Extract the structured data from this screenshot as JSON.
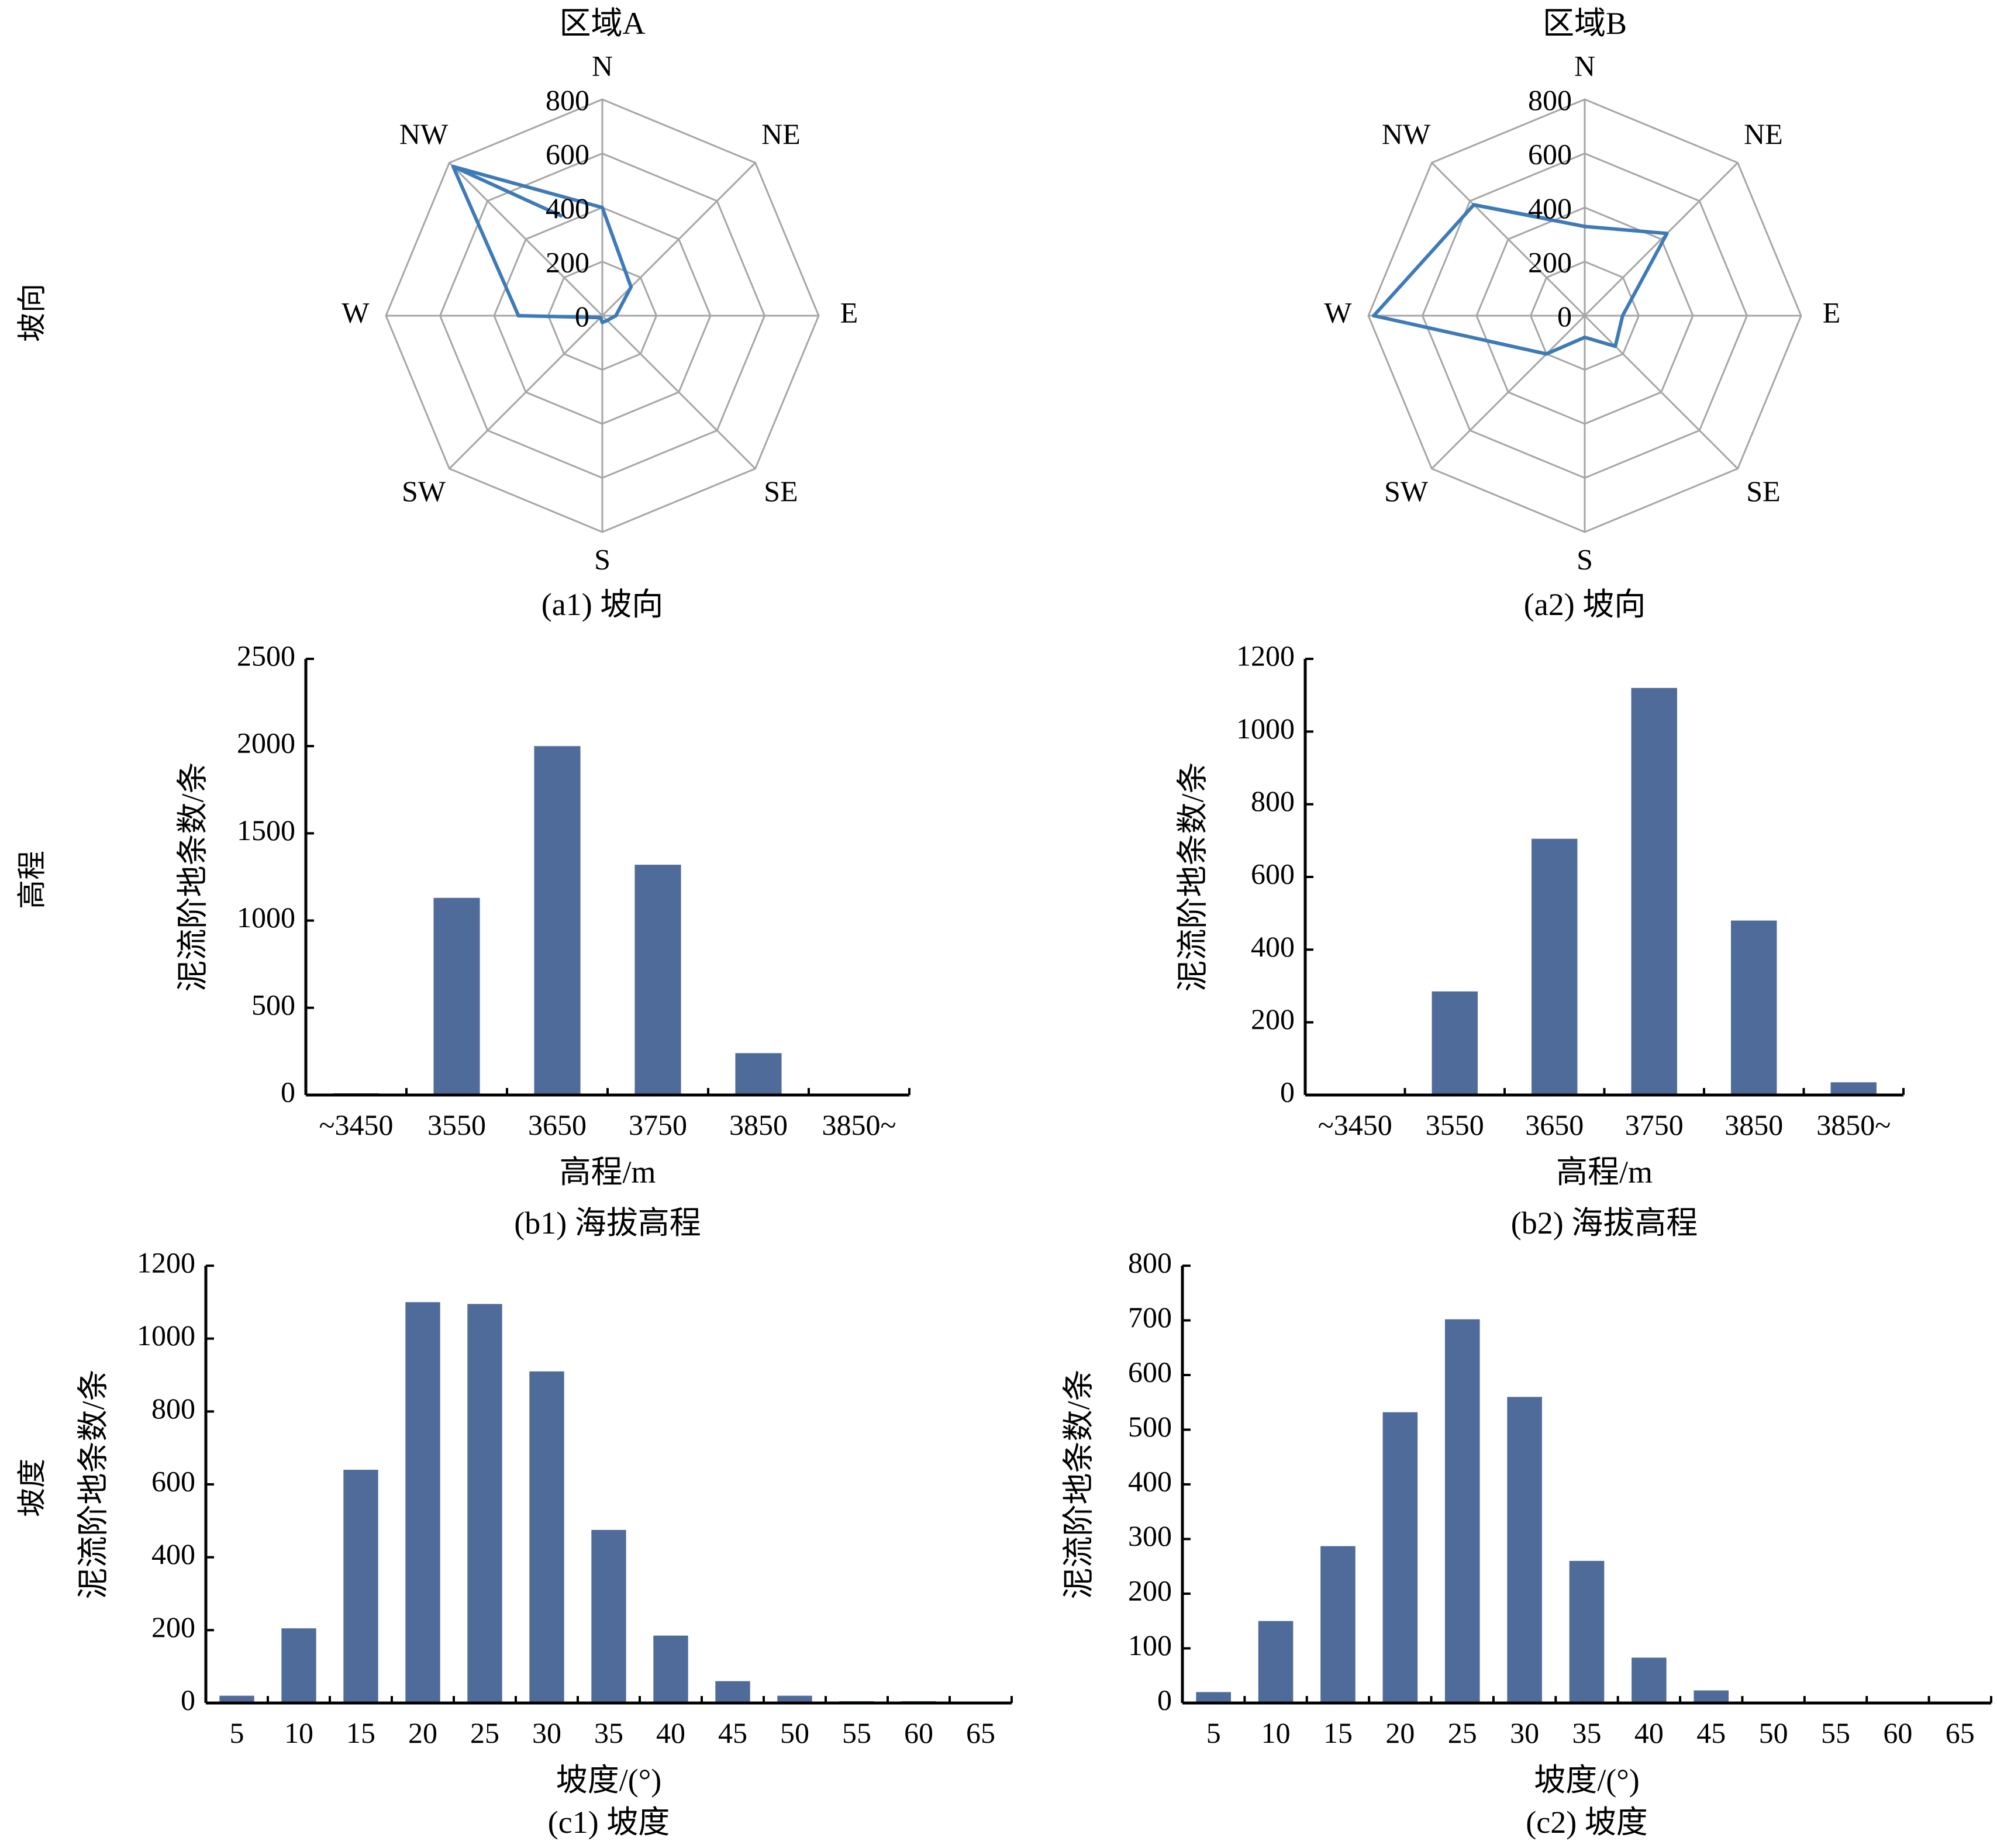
{
  "row_labels": {
    "aspect": "坡向",
    "elevation": "高程",
    "slope": "坡度"
  },
  "colors": {
    "bar": "#4f6b9a",
    "radar_line": "#3d7ab8",
    "grid": "#a6a6a6",
    "axis": "#000000"
  },
  "chart_data": [
    {
      "id": "a1",
      "type": "radar",
      "title": "区域A",
      "caption": "(a1) 坡向",
      "categories": [
        "N",
        "NE",
        "E",
        "SE",
        "S",
        "SW",
        "W",
        "NW"
      ],
      "values": [
        400,
        150,
        50,
        25,
        25,
        10,
        310,
        780
      ],
      "tail_value": 400,
      "rmax": 800,
      "ticks": [
        0,
        200,
        400,
        600,
        800
      ],
      "tick_labels": [
        "0",
        "200",
        "400",
        "600",
        "800"
      ]
    },
    {
      "id": "a2",
      "type": "radar",
      "caption": "(a2) 坡向",
      "title": "区域B",
      "categories": [
        "N",
        "NE",
        "E",
        "SE",
        "S",
        "SW",
        "W",
        "NW"
      ],
      "values": [
        330,
        430,
        140,
        160,
        80,
        200,
        780,
        580
      ],
      "tail_value": 390,
      "rmax": 800,
      "ticks": [
        0,
        200,
        400,
        600,
        800
      ],
      "tick_labels": [
        "0",
        "200",
        "400",
        "600",
        "800"
      ]
    },
    {
      "id": "b1",
      "type": "bar",
      "caption": "(b1) 海拔高程",
      "categories": [
        "~3450",
        "3550",
        "3650",
        "3750",
        "3850",
        "3850~"
      ],
      "values": [
        10,
        1130,
        2000,
        1320,
        240,
        0
      ],
      "ylabel": "泥流阶地条数/条",
      "xlabel": "高程/m",
      "ylim": [
        0,
        2500
      ],
      "yticks": [
        "0",
        "500",
        "1000",
        "1500",
        "2000",
        "2500"
      ]
    },
    {
      "id": "b2",
      "type": "bar",
      "caption": "(b2) 海拔高程",
      "categories": [
        "~3450",
        "3550",
        "3650",
        "3750",
        "3850",
        "3850~"
      ],
      "values": [
        0,
        285,
        705,
        1120,
        480,
        35
      ],
      "ylabel": "泥流阶地条数/条",
      "xlabel": "高程/m",
      "ylim": [
        0,
        1200
      ],
      "yticks": [
        "0",
        "200",
        "400",
        "600",
        "800",
        "1000",
        "1200"
      ]
    },
    {
      "id": "c1",
      "type": "bar",
      "caption": "(c1) 坡度",
      "categories": [
        "5",
        "10",
        "15",
        "20",
        "25",
        "30",
        "35",
        "40",
        "45",
        "50",
        "55",
        "60",
        "65"
      ],
      "values": [
        20,
        205,
        640,
        1100,
        1095,
        910,
        475,
        185,
        60,
        20,
        5,
        5,
        0
      ],
      "ylabel": "泥流阶地条数/条",
      "xlabel": "坡度/(°)",
      "ylim": [
        0,
        1200
      ],
      "yticks": [
        "0",
        "200",
        "400",
        "600",
        "800",
        "1000",
        "1200"
      ]
    },
    {
      "id": "c2",
      "type": "bar",
      "caption": "(c2) 坡度",
      "categories": [
        "5",
        "10",
        "15",
        "20",
        "25",
        "30",
        "35",
        "40",
        "45",
        "50",
        "55",
        "60",
        "65"
      ],
      "values": [
        20,
        150,
        287,
        532,
        702,
        560,
        260,
        83,
        23,
        2,
        2,
        0,
        0
      ],
      "ylabel": "泥流阶地条数/条",
      "xlabel": "坡度/(°)",
      "ylim": [
        0,
        800
      ],
      "yticks": [
        "0",
        "100",
        "200",
        "300",
        "400",
        "500",
        "600",
        "700",
        "800"
      ]
    }
  ]
}
